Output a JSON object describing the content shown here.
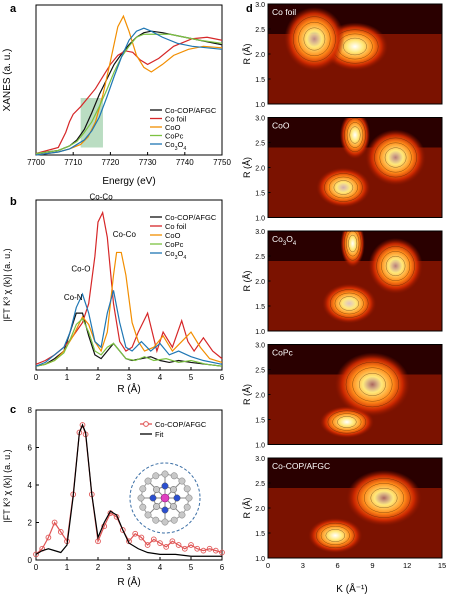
{
  "figure": {
    "panel_letters": [
      "a",
      "b",
      "c",
      "d"
    ]
  },
  "chart_data": [
    {
      "panel": "a",
      "type": "line",
      "xlabel": "Energy (eV)",
      "ylabel": "XANES (a. u.)",
      "xlim": [
        7700,
        7750
      ],
      "xticks": [
        "7700",
        "7710",
        "7720",
        "7730",
        "7740",
        "7750"
      ],
      "highlight": {
        "x0": 7712.0,
        "x1": 7718.0,
        "color": "#9ccfa8"
      },
      "legend": {
        "placement": "right-middle"
      },
      "series": [
        {
          "name": "Co-COP/AFGC",
          "color": "#111111",
          "x": [
            7700,
            7706,
            7709,
            7711,
            7713,
            7715,
            7717,
            7719,
            7721,
            7723,
            7725,
            7727,
            7729,
            7731,
            7734,
            7738,
            7742,
            7746,
            7750
          ],
          "y": [
            0.01,
            0.03,
            0.06,
            0.1,
            0.17,
            0.28,
            0.4,
            0.5,
            0.6,
            0.67,
            0.73,
            0.78,
            0.81,
            0.82,
            0.81,
            0.79,
            0.77,
            0.75,
            0.73
          ]
        },
        {
          "name": "Co foil",
          "color": "#d62728",
          "x": [
            7700,
            7706,
            7708,
            7709,
            7710,
            7712,
            7714,
            7716,
            7718,
            7720,
            7722,
            7724,
            7726,
            7728,
            7730,
            7733,
            7737,
            7742,
            7746,
            7750
          ],
          "y": [
            0.01,
            0.05,
            0.15,
            0.22,
            0.27,
            0.32,
            0.38,
            0.44,
            0.52,
            0.6,
            0.66,
            0.69,
            0.68,
            0.63,
            0.6,
            0.64,
            0.72,
            0.77,
            0.78,
            0.76
          ]
        },
        {
          "name": "CoO",
          "color": "#f28e00",
          "x": [
            7700,
            7706,
            7709,
            7712,
            7714,
            7716,
            7718,
            7720,
            7722,
            7723.5,
            7725,
            7727,
            7729,
            7731,
            7734,
            7737,
            7741,
            7745,
            7750
          ],
          "y": [
            0.0,
            0.02,
            0.04,
            0.07,
            0.12,
            0.22,
            0.4,
            0.62,
            0.85,
            0.92,
            0.82,
            0.66,
            0.58,
            0.55,
            0.6,
            0.66,
            0.7,
            0.72,
            0.71
          ]
        },
        {
          "name": "CoPc",
          "color": "#7cc242",
          "x": [
            7700,
            7706,
            7709,
            7711,
            7713,
            7715,
            7717,
            7719,
            7721,
            7723,
            7725,
            7727,
            7729,
            7731,
            7733,
            7736,
            7740,
            7744,
            7750
          ],
          "y": [
            0.01,
            0.03,
            0.06,
            0.09,
            0.15,
            0.22,
            0.32,
            0.43,
            0.55,
            0.65,
            0.72,
            0.78,
            0.8,
            0.8,
            0.8,
            0.8,
            0.78,
            0.76,
            0.74
          ]
        },
        {
          "name": "Co3O4",
          "color": "#1f77b4",
          "x": [
            7700,
            7706,
            7709,
            7711,
            7713,
            7715,
            7717,
            7719,
            7721,
            7723,
            7725,
            7727,
            7729,
            7731,
            7734,
            7738,
            7742,
            7746,
            7750
          ],
          "y": [
            0.0,
            0.02,
            0.04,
            0.07,
            0.1,
            0.16,
            0.25,
            0.38,
            0.52,
            0.65,
            0.76,
            0.82,
            0.84,
            0.82,
            0.78,
            0.74,
            0.72,
            0.71,
            0.7
          ]
        }
      ]
    },
    {
      "panel": "b",
      "type": "line",
      "xlabel": "R (Å)",
      "ylabel": "|FT K³ χ (k)| (a. u.)",
      "xlim": [
        0,
        6
      ],
      "xticks": [
        "0",
        "1",
        "2",
        "3",
        "4",
        "5",
        "6"
      ],
      "legend": {
        "placement": "top-right"
      },
      "annotations": [
        {
          "text": "Co-Co",
          "x": 2.1,
          "y": 0.9
        },
        {
          "text": "Co-Co",
          "x": 2.85,
          "y": 0.7
        },
        {
          "text": "Co-O",
          "x": 1.45,
          "y": 0.52
        },
        {
          "text": "Co-N",
          "x": 1.2,
          "y": 0.37
        }
      ],
      "series": [
        {
          "name": "Co-COP/AFGC",
          "color": "#111111",
          "x": [
            0,
            0.3,
            0.6,
            0.9,
            1.1,
            1.3,
            1.5,
            1.7,
            1.9,
            2.1,
            2.3,
            2.5,
            2.7,
            2.9,
            3.1,
            3.4,
            3.7,
            4.0,
            4.3,
            4.6,
            5.0,
            5.5,
            6.0
          ],
          "y": [
            0.02,
            0.03,
            0.06,
            0.1,
            0.2,
            0.3,
            0.3,
            0.18,
            0.08,
            0.06,
            0.1,
            0.14,
            0.1,
            0.06,
            0.05,
            0.06,
            0.07,
            0.05,
            0.04,
            0.05,
            0.04,
            0.03,
            0.02
          ]
        },
        {
          "name": "Co foil",
          "color": "#d62728",
          "x": [
            0,
            0.3,
            0.6,
            0.9,
            1.2,
            1.5,
            1.7,
            1.9,
            2.0,
            2.15,
            2.3,
            2.5,
            2.7,
            2.9,
            3.1,
            3.3,
            3.6,
            3.9,
            4.1,
            4.4,
            4.7,
            4.9,
            5.1,
            5.4,
            5.7,
            6.0
          ],
          "y": [
            0.03,
            0.05,
            0.08,
            0.12,
            0.18,
            0.25,
            0.35,
            0.6,
            0.78,
            0.83,
            0.7,
            0.35,
            0.15,
            0.1,
            0.12,
            0.2,
            0.3,
            0.1,
            0.2,
            0.12,
            0.26,
            0.15,
            0.1,
            0.17,
            0.1,
            0.06
          ]
        },
        {
          "name": "CoO",
          "color": "#f28e00",
          "x": [
            0,
            0.3,
            0.6,
            0.9,
            1.2,
            1.5,
            1.7,
            1.9,
            2.1,
            2.3,
            2.5,
            2.6,
            2.75,
            2.9,
            3.1,
            3.3,
            3.5,
            3.8,
            4.1,
            4.4,
            4.7,
            5.0,
            5.3,
            5.6,
            6.0
          ],
          "y": [
            0.02,
            0.03,
            0.05,
            0.1,
            0.18,
            0.28,
            0.24,
            0.15,
            0.1,
            0.2,
            0.5,
            0.62,
            0.62,
            0.5,
            0.25,
            0.15,
            0.1,
            0.12,
            0.18,
            0.1,
            0.15,
            0.2,
            0.12,
            0.06,
            0.04
          ]
        },
        {
          "name": "CoPc",
          "color": "#7cc242",
          "x": [
            0,
            0.3,
            0.6,
            0.9,
            1.1,
            1.3,
            1.5,
            1.7,
            1.9,
            2.1,
            2.3,
            2.5,
            2.7,
            2.9,
            3.2,
            3.5,
            3.8,
            4.2,
            4.6,
            5.0,
            5.5,
            6.0
          ],
          "y": [
            0.02,
            0.03,
            0.05,
            0.09,
            0.16,
            0.24,
            0.27,
            0.2,
            0.1,
            0.08,
            0.12,
            0.14,
            0.1,
            0.06,
            0.05,
            0.07,
            0.05,
            0.06,
            0.04,
            0.05,
            0.03,
            0.02
          ]
        },
        {
          "name": "Co3O4",
          "color": "#1f77b4",
          "x": [
            0,
            0.3,
            0.6,
            0.9,
            1.1,
            1.3,
            1.5,
            1.7,
            1.9,
            2.1,
            2.3,
            2.5,
            2.7,
            2.9,
            3.1,
            3.4,
            3.7,
            4.0,
            4.3,
            4.6,
            5.0,
            5.4,
            6.0
          ],
          "y": [
            0.02,
            0.04,
            0.08,
            0.12,
            0.2,
            0.33,
            0.4,
            0.3,
            0.15,
            0.12,
            0.3,
            0.42,
            0.25,
            0.12,
            0.1,
            0.15,
            0.1,
            0.14,
            0.08,
            0.1,
            0.07,
            0.05,
            0.03
          ]
        }
      ]
    },
    {
      "panel": "c",
      "type": "line",
      "xlabel": "R (Å)",
      "ylabel": "|FT K³ χ (k)| (a. u.)",
      "xlim": [
        0,
        6
      ],
      "ylim": [
        0,
        8
      ],
      "xticks": [
        "0",
        "1",
        "2",
        "3",
        "4",
        "5",
        "6"
      ],
      "yticks": [
        "0",
        "2",
        "4",
        "6",
        "8"
      ],
      "legend": {
        "placement": "top-right"
      },
      "series": [
        {
          "name": "Co-COP/AFGC",
          "color": "#e05555",
          "marker": "open-circle",
          "x": [
            0,
            0.2,
            0.4,
            0.6,
            0.8,
            1.0,
            1.2,
            1.4,
            1.5,
            1.6,
            1.8,
            2.0,
            2.2,
            2.4,
            2.6,
            2.8,
            3.0,
            3.2,
            3.4,
            3.6,
            3.8,
            4.0,
            4.2,
            4.4,
            4.6,
            4.8,
            5.0,
            5.2,
            5.4,
            5.6,
            5.8,
            6.0
          ],
          "y": [
            0.3,
            0.6,
            1.2,
            2.0,
            1.5,
            1.0,
            3.5,
            6.8,
            7.2,
            6.7,
            3.5,
            1.0,
            1.8,
            2.5,
            2.3,
            1.6,
            1.0,
            1.4,
            1.2,
            0.8,
            1.1,
            0.9,
            0.7,
            1.0,
            0.8,
            0.6,
            0.8,
            0.6,
            0.5,
            0.6,
            0.5,
            0.4
          ]
        },
        {
          "name": "Fit",
          "color": "#000000",
          "x": [
            0,
            0.2,
            0.4,
            0.6,
            0.8,
            1.0,
            1.2,
            1.4,
            1.5,
            1.6,
            1.8,
            2.0,
            2.2,
            2.4,
            2.6,
            2.8,
            3.0,
            3.3,
            3.6,
            4.0,
            4.5,
            5.0,
            5.5,
            6.0
          ],
          "y": [
            0.3,
            0.5,
            0.6,
            0.5,
            0.4,
            0.8,
            3.4,
            6.8,
            7.2,
            6.8,
            3.5,
            1.2,
            2.0,
            2.6,
            2.4,
            1.6,
            0.9,
            0.6,
            0.4,
            0.3,
            0.3,
            0.2,
            0.2,
            0.2
          ]
        }
      ]
    },
    {
      "panel": "d",
      "type": "heatmap",
      "xlabel": "K (Å⁻¹)",
      "ylabel": "R (Å)",
      "xlim": [
        0,
        15
      ],
      "ylim": [
        1.0,
        3.0
      ],
      "xticks": [
        "0",
        "3",
        "6",
        "9",
        "12",
        "15"
      ],
      "yticks": [
        "1.0",
        "1.5",
        "2.0",
        "2.5",
        "3.0"
      ],
      "maps": [
        {
          "label": "Co foil",
          "hotspots": [
            {
              "k": 7.5,
              "r": 2.15,
              "w": 2.2,
              "h": 0.3,
              "amp": 1.0
            },
            {
              "k": 4.0,
              "r": 2.3,
              "w": 2.0,
              "h": 0.4,
              "amp": 0.5
            }
          ]
        },
        {
          "label": "CoO",
          "hotspots": [
            {
              "k": 7.5,
              "r": 2.65,
              "w": 1.0,
              "h": 0.3,
              "amp": 1.0
            },
            {
              "k": 6.5,
              "r": 1.6,
              "w": 1.8,
              "h": 0.25,
              "amp": 0.65
            },
            {
              "k": 11.0,
              "r": 2.2,
              "w": 2.0,
              "h": 0.35,
              "amp": 0.45
            }
          ]
        },
        {
          "label": "Co3O4",
          "hotspots": [
            {
              "k": 7.3,
              "r": 2.75,
              "w": 0.8,
              "h": 0.3,
              "amp": 1.0
            },
            {
              "k": 7.0,
              "r": 1.55,
              "w": 1.8,
              "h": 0.25,
              "amp": 0.75
            },
            {
              "k": 11.0,
              "r": 2.3,
              "w": 1.8,
              "h": 0.35,
              "amp": 0.45
            }
          ]
        },
        {
          "label": "CoPc",
          "hotspots": [
            {
              "k": 6.8,
              "r": 1.45,
              "w": 1.8,
              "h": 0.2,
              "amp": 1.0
            },
            {
              "k": 9.0,
              "r": 2.2,
              "w": 2.5,
              "h": 0.4,
              "amp": 0.35
            }
          ]
        },
        {
          "label": "Co-COP/AFGC",
          "hotspots": [
            {
              "k": 5.8,
              "r": 1.45,
              "w": 1.8,
              "h": 0.22,
              "amp": 1.0
            },
            {
              "k": 10.0,
              "r": 2.2,
              "w": 2.5,
              "h": 0.35,
              "amp": 0.35
            }
          ]
        }
      ]
    }
  ]
}
